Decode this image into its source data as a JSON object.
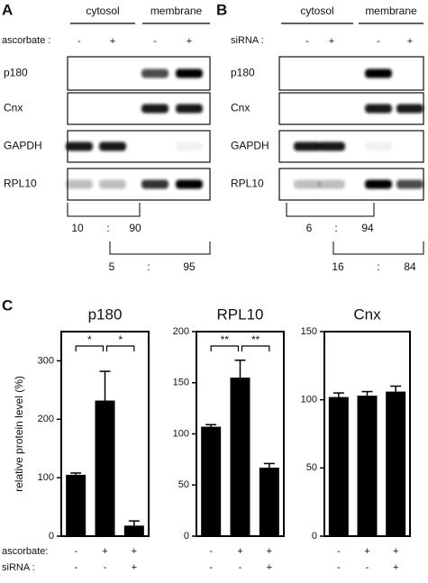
{
  "panels": [
    {
      "label": "A",
      "groups": [
        "cytosol",
        "membrane"
      ],
      "condition": "ascorbate :",
      "signs": [
        "-",
        "+",
        "-",
        "+"
      ],
      "rows": [
        "p180",
        "Cnx",
        "GAPDH",
        "RPL10"
      ],
      "ratios": [
        {
          "values": [
            10,
            90
          ],
          "separator": ":"
        },
        {
          "values": [
            5,
            95
          ],
          "separator": ":"
        }
      ]
    },
    {
      "label": "B",
      "groups": [
        "cytosol",
        "membrane"
      ],
      "condition": "siRNA :",
      "signs": [
        "-",
        "+",
        "-",
        "+"
      ],
      "rows": [
        "p180",
        "Cnx",
        "GAPDH",
        "RPL10"
      ],
      "ratios": [
        {
          "values": [
            6,
            94
          ],
          "separator": ":"
        },
        {
          "values": [
            16,
            84
          ],
          "separator": ":"
        }
      ]
    }
  ],
  "panel_c_label": "C",
  "conditions": [
    {
      "label": "ascorbate:",
      "signs": [
        "-",
        "+",
        "+"
      ]
    },
    {
      "label": "siRNA :",
      "signs": [
        "-",
        "-",
        "+"
      ]
    }
  ],
  "chart_data": [
    {
      "type": "bar",
      "title": "p180",
      "ylabel": "relative protein level (%)",
      "color": "#000000",
      "categories": [
        null,
        null,
        null
      ],
      "series": [
        {
          "values": [
            105,
            232,
            18
          ],
          "errors": [
            3,
            50,
            8
          ]
        }
      ],
      "ylim": [
        0,
        350
      ],
      "yticks": [
        0,
        100,
        200,
        300
      ],
      "significance": [
        "*",
        "*"
      ]
    },
    {
      "type": "bar",
      "title": "RPL10",
      "color": "#000000",
      "categories": [
        null,
        null,
        null
      ],
      "series": [
        {
          "values": [
            107,
            155,
            67
          ],
          "errors": [
            2,
            17,
            4
          ]
        }
      ],
      "ylim": [
        0,
        200
      ],
      "yticks": [
        0,
        50,
        100,
        150,
        200
      ],
      "significance": [
        "**",
        "**"
      ]
    },
    {
      "type": "bar",
      "title": "Cnx",
      "color": "#000000",
      "categories": [
        null,
        null,
        null
      ],
      "series": [
        {
          "values": [
            102,
            103,
            106
          ],
          "errors": [
            3,
            3,
            4
          ]
        }
      ],
      "ylim": [
        0,
        150
      ],
      "yticks": [
        0,
        50,
        100,
        150
      ]
    }
  ]
}
